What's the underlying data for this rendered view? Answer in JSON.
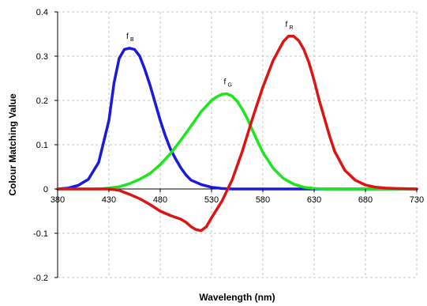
{
  "chart_data": {
    "type": "line",
    "title": "",
    "xlabel": "Wavelength (nm)",
    "ylabel": "Colour Matching Value",
    "xlim": [
      380,
      730
    ],
    "ylim": [
      -0.2,
      0.4
    ],
    "x_ticks": [
      380,
      430,
      480,
      530,
      580,
      630,
      680,
      730
    ],
    "y_ticks": [
      -0.2,
      -0.1,
      0,
      0.1,
      0.2,
      0.3,
      0.4
    ],
    "y_tick_labels": [
      "-0.2",
      "-0.1",
      "0",
      "0.1",
      "0.2",
      "0.3",
      "0.4"
    ],
    "grid": true,
    "legend": "none",
    "series": [
      {
        "label_main": "f",
        "label_sub": "B",
        "color": "#1a1adc",
        "points": [
          [
            380,
            0
          ],
          [
            390,
            0.002
          ],
          [
            400,
            0.008
          ],
          [
            410,
            0.022
          ],
          [
            420,
            0.06
          ],
          [
            430,
            0.155
          ],
          [
            435,
            0.24
          ],
          [
            440,
            0.295
          ],
          [
            445,
            0.315
          ],
          [
            450,
            0.318
          ],
          [
            455,
            0.315
          ],
          [
            460,
            0.3
          ],
          [
            465,
            0.27
          ],
          [
            470,
            0.235
          ],
          [
            475,
            0.195
          ],
          [
            480,
            0.155
          ],
          [
            485,
            0.12
          ],
          [
            490,
            0.09
          ],
          [
            495,
            0.068
          ],
          [
            500,
            0.048
          ],
          [
            505,
            0.032
          ],
          [
            510,
            0.02
          ],
          [
            520,
            0.01
          ],
          [
            530,
            0.004
          ],
          [
            540,
            0.001
          ],
          [
            550,
            0
          ],
          [
            580,
            0
          ],
          [
            630,
            0
          ],
          [
            680,
            0
          ],
          [
            730,
            0
          ]
        ]
      },
      {
        "label_main": "f",
        "label_sub": "G",
        "color": "#1ee61e",
        "points": [
          [
            380,
            0
          ],
          [
            420,
            0
          ],
          [
            430,
            0.002
          ],
          [
            440,
            0.005
          ],
          [
            450,
            0.012
          ],
          [
            460,
            0.022
          ],
          [
            470,
            0.035
          ],
          [
            480,
            0.055
          ],
          [
            490,
            0.08
          ],
          [
            500,
            0.11
          ],
          [
            510,
            0.142
          ],
          [
            520,
            0.175
          ],
          [
            530,
            0.2
          ],
          [
            535,
            0.208
          ],
          [
            540,
            0.214
          ],
          [
            545,
            0.215
          ],
          [
            550,
            0.21
          ],
          [
            555,
            0.198
          ],
          [
            560,
            0.18
          ],
          [
            565,
            0.158
          ],
          [
            570,
            0.132
          ],
          [
            575,
            0.107
          ],
          [
            580,
            0.083
          ],
          [
            590,
            0.047
          ],
          [
            600,
            0.024
          ],
          [
            610,
            0.011
          ],
          [
            620,
            0.004
          ],
          [
            630,
            0.001
          ],
          [
            640,
            0
          ],
          [
            680,
            0
          ],
          [
            730,
            0
          ]
        ]
      },
      {
        "label_main": "f",
        "label_sub": "R",
        "color": "#dc1414",
        "points": [
          [
            380,
            0
          ],
          [
            430,
            0
          ],
          [
            440,
            -0.003
          ],
          [
            450,
            -0.012
          ],
          [
            460,
            -0.022
          ],
          [
            470,
            -0.035
          ],
          [
            480,
            -0.05
          ],
          [
            490,
            -0.06
          ],
          [
            500,
            -0.068
          ],
          [
            505,
            -0.075
          ],
          [
            510,
            -0.085
          ],
          [
            515,
            -0.092
          ],
          [
            520,
            -0.094
          ],
          [
            525,
            -0.085
          ],
          [
            530,
            -0.065
          ],
          [
            540,
            -0.028
          ],
          [
            550,
            0.02
          ],
          [
            560,
            0.085
          ],
          [
            570,
            0.16
          ],
          [
            580,
            0.23
          ],
          [
            590,
            0.29
          ],
          [
            600,
            0.333
          ],
          [
            605,
            0.345
          ],
          [
            610,
            0.345
          ],
          [
            615,
            0.335
          ],
          [
            620,
            0.315
          ],
          [
            625,
            0.285
          ],
          [
            630,
            0.245
          ],
          [
            635,
            0.2
          ],
          [
            640,
            0.16
          ],
          [
            645,
            0.12
          ],
          [
            650,
            0.085
          ],
          [
            660,
            0.042
          ],
          [
            670,
            0.02
          ],
          [
            680,
            0.009
          ],
          [
            690,
            0.004
          ],
          [
            700,
            0.002
          ],
          [
            710,
            0.001
          ],
          [
            730,
            0
          ]
        ]
      }
    ]
  }
}
